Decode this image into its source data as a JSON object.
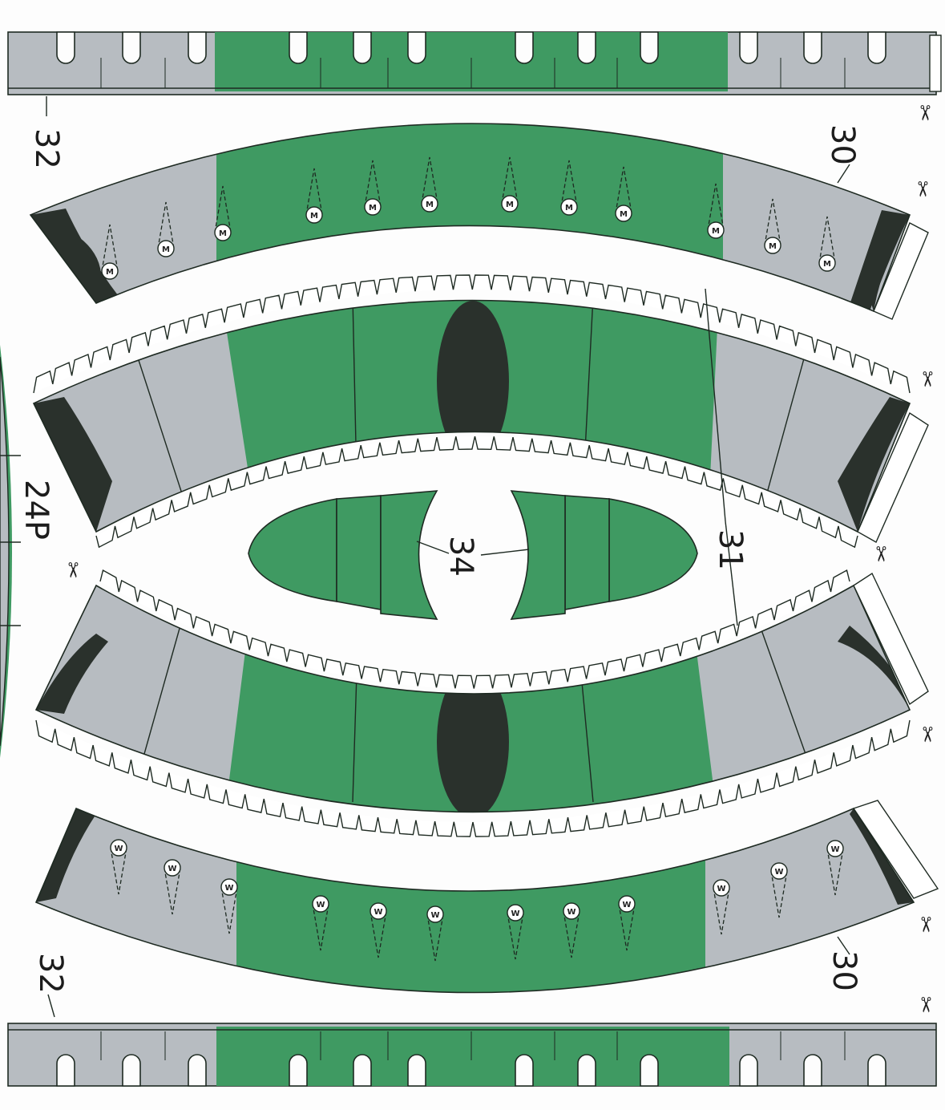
{
  "sheet": {
    "labels": {
      "strip_top": "32",
      "strip_bottom": "32",
      "band_top": "30",
      "band_bottom": "30",
      "wing_parts": "31",
      "center_parts": "34",
      "side_part": "24P"
    },
    "window_marks": {
      "top_band": "M",
      "bottom_band": "W"
    },
    "scissors_icon": "✂"
  },
  "colors": {
    "green": "#3f9a62",
    "gray": "#b7bcc1",
    "dark": "#2a312c",
    "white": "#ffffff",
    "background": "#fdfdfd"
  }
}
